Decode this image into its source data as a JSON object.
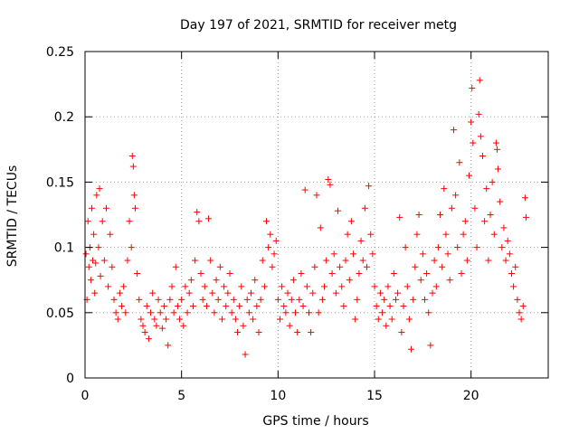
{
  "chart_data": {
    "type": "scatter",
    "title": "Day 197 of 2021, SRMTID for receiver metg",
    "xlabel": "GPS time / hours",
    "ylabel": "SRMTID / TECUs",
    "xlim": [
      0,
      24
    ],
    "ylim": [
      0,
      0.25
    ],
    "x_ticks": [
      0,
      5,
      10,
      15,
      20
    ],
    "x_tick_labels": [
      "0",
      "5",
      "10",
      "15",
      "20"
    ],
    "y_ticks": [
      0,
      0.05,
      0.1,
      0.15,
      0.2,
      0.25
    ],
    "y_tick_labels": [
      "0",
      "0.05",
      "0.1",
      "0.15",
      "0.2",
      "0.25"
    ],
    "grid": true,
    "marker": "plus",
    "color": "#ff0000",
    "series": [
      {
        "name": "SRMTID",
        "points": [
          [
            0.05,
            0.095
          ],
          [
            0.1,
            0.06
          ],
          [
            0.15,
            0.12
          ],
          [
            0.2,
            0.085
          ],
          [
            0.25,
            0.1
          ],
          [
            0.3,
            0.075
          ],
          [
            0.35,
            0.13
          ],
          [
            0.4,
            0.09
          ],
          [
            0.45,
            0.11
          ],
          [
            0.5,
            0.065
          ],
          [
            0.55,
            0.088
          ],
          [
            0.6,
            0.14
          ],
          [
            0.7,
            0.1
          ],
          [
            0.75,
            0.145
          ],
          [
            0.8,
            0.078
          ],
          [
            0.9,
            0.12
          ],
          [
            1.0,
            0.09
          ],
          [
            1.1,
            0.13
          ],
          [
            1.2,
            0.07
          ],
          [
            1.3,
            0.11
          ],
          [
            1.4,
            0.085
          ],
          [
            1.5,
            0.06
          ],
          [
            1.6,
            0.05
          ],
          [
            1.7,
            0.045
          ],
          [
            1.8,
            0.065
          ],
          [
            1.9,
            0.055
          ],
          [
            2.0,
            0.07
          ],
          [
            2.1,
            0.05
          ],
          [
            2.2,
            0.09
          ],
          [
            2.3,
            0.12
          ],
          [
            2.4,
            0.1
          ],
          [
            2.45,
            0.17
          ],
          [
            2.5,
            0.162
          ],
          [
            2.55,
            0.14
          ],
          [
            2.6,
            0.13
          ],
          [
            2.7,
            0.08
          ],
          [
            2.8,
            0.06
          ],
          [
            2.9,
            0.045
          ],
          [
            3.0,
            0.04
          ],
          [
            3.1,
            0.035
          ],
          [
            3.2,
            0.055
          ],
          [
            3.3,
            0.03
          ],
          [
            3.4,
            0.05
          ],
          [
            3.5,
            0.065
          ],
          [
            3.6,
            0.045
          ],
          [
            3.7,
            0.04
          ],
          [
            3.8,
            0.06
          ],
          [
            3.9,
            0.05
          ],
          [
            4.0,
            0.038
          ],
          [
            4.1,
            0.055
          ],
          [
            4.2,
            0.045
          ],
          [
            4.3,
            0.025
          ],
          [
            4.4,
            0.06
          ],
          [
            4.5,
            0.07
          ],
          [
            4.6,
            0.05
          ],
          [
            4.7,
            0.085
          ],
          [
            4.8,
            0.055
          ],
          [
            4.9,
            0.045
          ],
          [
            5.0,
            0.06
          ],
          [
            5.1,
            0.04
          ],
          [
            5.2,
            0.07
          ],
          [
            5.3,
            0.05
          ],
          [
            5.4,
            0.065
          ],
          [
            5.5,
            0.075
          ],
          [
            5.6,
            0.055
          ],
          [
            5.7,
            0.09
          ],
          [
            5.8,
            0.127
          ],
          [
            5.9,
            0.12
          ],
          [
            6.0,
            0.08
          ],
          [
            6.1,
            0.06
          ],
          [
            6.2,
            0.07
          ],
          [
            6.3,
            0.055
          ],
          [
            6.4,
            0.122
          ],
          [
            6.5,
            0.09
          ],
          [
            6.6,
            0.065
          ],
          [
            6.7,
            0.05
          ],
          [
            6.8,
            0.075
          ],
          [
            6.9,
            0.06
          ],
          [
            7.0,
            0.085
          ],
          [
            7.1,
            0.045
          ],
          [
            7.2,
            0.07
          ],
          [
            7.3,
            0.055
          ],
          [
            7.4,
            0.065
          ],
          [
            7.5,
            0.08
          ],
          [
            7.6,
            0.05
          ],
          [
            7.7,
            0.06
          ],
          [
            7.8,
            0.045
          ],
          [
            7.9,
            0.035
          ],
          [
            8.0,
            0.055
          ],
          [
            8.1,
            0.07
          ],
          [
            8.2,
            0.04
          ],
          [
            8.3,
            0.018
          ],
          [
            8.4,
            0.06
          ],
          [
            8.5,
            0.05
          ],
          [
            8.6,
            0.065
          ],
          [
            8.7,
            0.045
          ],
          [
            8.8,
            0.075
          ],
          [
            8.9,
            0.055
          ],
          [
            9.0,
            0.035
          ],
          [
            9.1,
            0.06
          ],
          [
            9.2,
            0.09
          ],
          [
            9.3,
            0.07
          ],
          [
            9.4,
            0.12
          ],
          [
            9.5,
            0.1
          ],
          [
            9.6,
            0.11
          ],
          [
            9.7,
            0.085
          ],
          [
            9.8,
            0.095
          ],
          [
            9.9,
            0.105
          ],
          [
            10.0,
            0.06
          ],
          [
            10.1,
            0.045
          ],
          [
            10.2,
            0.07
          ],
          [
            10.3,
            0.055
          ],
          [
            10.4,
            0.05
          ],
          [
            10.5,
            0.065
          ],
          [
            10.6,
            0.04
          ],
          [
            10.7,
            0.06
          ],
          [
            10.8,
            0.075
          ],
          [
            10.9,
            0.05
          ],
          [
            11.0,
            0.035
          ],
          [
            11.1,
            0.06
          ],
          [
            11.2,
            0.08
          ],
          [
            11.3,
            0.055
          ],
          [
            11.4,
            0.144
          ],
          [
            11.5,
            0.07
          ],
          [
            11.6,
            0.05
          ],
          [
            11.7,
            0.035
          ],
          [
            11.8,
            0.065
          ],
          [
            11.9,
            0.085
          ],
          [
            12.0,
            0.14
          ],
          [
            12.1,
            0.05
          ],
          [
            12.2,
            0.115
          ],
          [
            12.3,
            0.06
          ],
          [
            12.4,
            0.07
          ],
          [
            12.5,
            0.09
          ],
          [
            12.6,
            0.152
          ],
          [
            12.7,
            0.148
          ],
          [
            12.8,
            0.08
          ],
          [
            12.9,
            0.095
          ],
          [
            13.0,
            0.065
          ],
          [
            13.1,
            0.128
          ],
          [
            13.2,
            0.085
          ],
          [
            13.3,
            0.07
          ],
          [
            13.4,
            0.055
          ],
          [
            13.5,
            0.09
          ],
          [
            13.6,
            0.11
          ],
          [
            13.7,
            0.075
          ],
          [
            13.8,
            0.12
          ],
          [
            13.9,
            0.095
          ],
          [
            14.0,
            0.045
          ],
          [
            14.1,
            0.06
          ],
          [
            14.2,
            0.08
          ],
          [
            14.3,
            0.105
          ],
          [
            14.4,
            0.09
          ],
          [
            14.5,
            0.13
          ],
          [
            14.6,
            0.085
          ],
          [
            14.7,
            0.147
          ],
          [
            14.8,
            0.11
          ],
          [
            14.9,
            0.095
          ],
          [
            15.0,
            0.07
          ],
          [
            15.1,
            0.055
          ],
          [
            15.2,
            0.045
          ],
          [
            15.3,
            0.065
          ],
          [
            15.4,
            0.05
          ],
          [
            15.5,
            0.06
          ],
          [
            15.6,
            0.04
          ],
          [
            15.7,
            0.07
          ],
          [
            15.8,
            0.055
          ],
          [
            15.9,
            0.045
          ],
          [
            16.0,
            0.08
          ],
          [
            16.1,
            0.06
          ],
          [
            16.2,
            0.065
          ],
          [
            16.3,
            0.123
          ],
          [
            16.4,
            0.035
          ],
          [
            16.5,
            0.055
          ],
          [
            16.6,
            0.1
          ],
          [
            16.7,
            0.07
          ],
          [
            16.8,
            0.045
          ],
          [
            16.9,
            0.022
          ],
          [
            17.0,
            0.06
          ],
          [
            17.1,
            0.085
          ],
          [
            17.2,
            0.11
          ],
          [
            17.3,
            0.125
          ],
          [
            17.4,
            0.075
          ],
          [
            17.5,
            0.095
          ],
          [
            17.6,
            0.06
          ],
          [
            17.7,
            0.08
          ],
          [
            17.8,
            0.05
          ],
          [
            17.9,
            0.025
          ],
          [
            18.0,
            0.065
          ],
          [
            18.1,
            0.09
          ],
          [
            18.2,
            0.07
          ],
          [
            18.3,
            0.1
          ],
          [
            18.4,
            0.125
          ],
          [
            18.5,
            0.085
          ],
          [
            18.6,
            0.145
          ],
          [
            18.7,
            0.11
          ],
          [
            18.8,
            0.095
          ],
          [
            18.9,
            0.075
          ],
          [
            19.0,
            0.13
          ],
          [
            19.1,
            0.19
          ],
          [
            19.2,
            0.14
          ],
          [
            19.3,
            0.1
          ],
          [
            19.4,
            0.165
          ],
          [
            19.5,
            0.08
          ],
          [
            19.6,
            0.11
          ],
          [
            19.7,
            0.12
          ],
          [
            19.8,
            0.09
          ],
          [
            19.9,
            0.155
          ],
          [
            20.0,
            0.196
          ],
          [
            20.05,
            0.222
          ],
          [
            20.1,
            0.18
          ],
          [
            20.2,
            0.13
          ],
          [
            20.3,
            0.1
          ],
          [
            20.4,
            0.202
          ],
          [
            20.45,
            0.228
          ],
          [
            20.5,
            0.185
          ],
          [
            20.6,
            0.17
          ],
          [
            20.7,
            0.12
          ],
          [
            20.8,
            0.145
          ],
          [
            20.9,
            0.09
          ],
          [
            21.0,
            0.125
          ],
          [
            21.1,
            0.15
          ],
          [
            21.2,
            0.11
          ],
          [
            21.3,
            0.18
          ],
          [
            21.35,
            0.175
          ],
          [
            21.4,
            0.16
          ],
          [
            21.5,
            0.135
          ],
          [
            21.6,
            0.1
          ],
          [
            21.7,
            0.115
          ],
          [
            21.8,
            0.09
          ],
          [
            21.9,
            0.105
          ],
          [
            22.0,
            0.095
          ],
          [
            22.1,
            0.08
          ],
          [
            22.2,
            0.07
          ],
          [
            22.3,
            0.085
          ],
          [
            22.4,
            0.06
          ],
          [
            22.5,
            0.05
          ],
          [
            22.6,
            0.045
          ],
          [
            22.7,
            0.055
          ],
          [
            22.8,
            0.138
          ],
          [
            22.85,
            0.123
          ]
        ]
      }
    ]
  }
}
